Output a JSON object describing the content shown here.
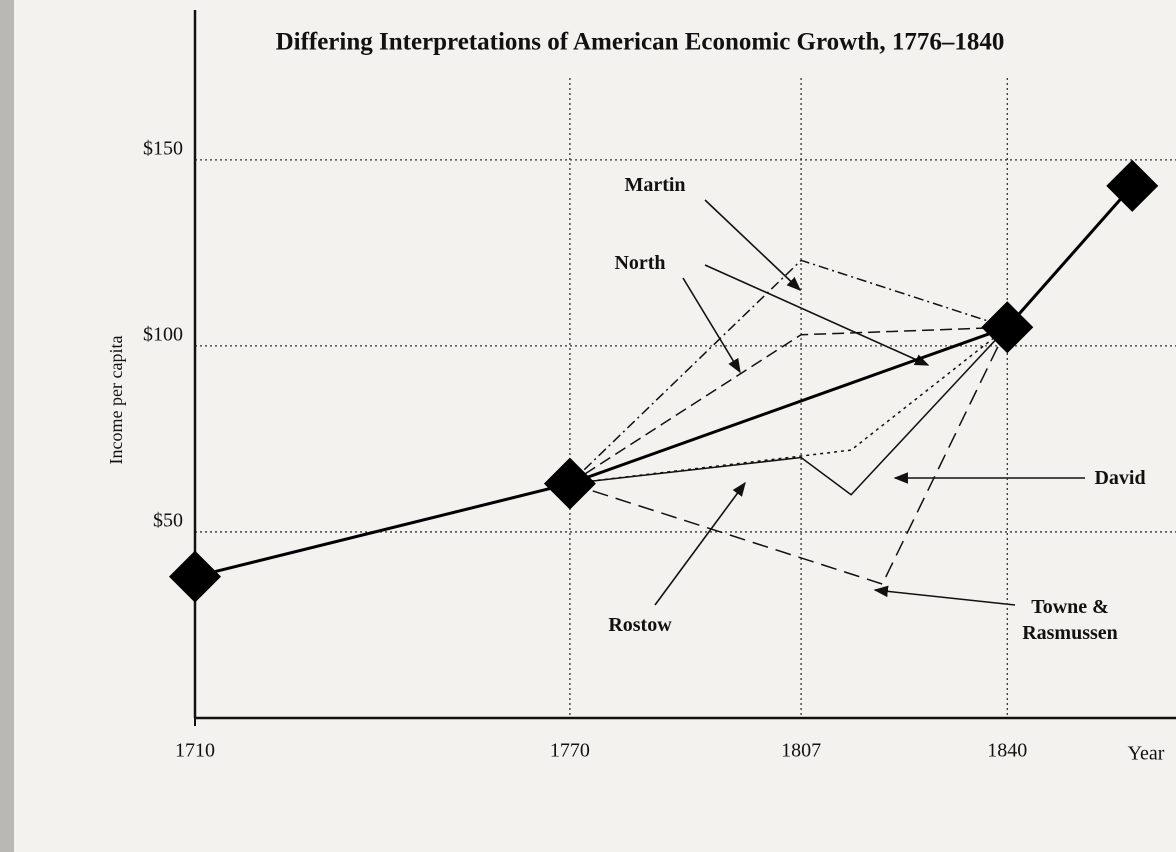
{
  "chart_data": {
    "type": "line",
    "title": "Differing Interpretations of American Economic Growth, 1776–1840",
    "y_label": "Income per capita",
    "x_label": "Year",
    "xlim": [
      1710,
      1867
    ],
    "xticks": [
      1710,
      1770,
      1807,
      1840
    ],
    "ylim": [
      0,
      172
    ],
    "yticks": [
      {
        "value": 50,
        "label": "$50"
      },
      {
        "value": 100,
        "label": "$100"
      },
      {
        "value": 150,
        "label": "$150"
      }
    ],
    "grid": true,
    "series": [
      {
        "x": [
          1710,
          1770,
          1840,
          1860
        ],
        "values": [
          38,
          63,
          105,
          143
        ],
        "color": "#000000",
        "width": 3,
        "dash": "none",
        "marker": "diamond"
      },
      {
        "name": "Martin",
        "x": [
          1770,
          1807,
          1840
        ],
        "values": [
          63,
          123,
          105
        ],
        "color": "#111111",
        "width": 1.5,
        "dash": "10 4 2 4"
      },
      {
        "name": "North",
        "x": [
          1770,
          1807,
          1840
        ],
        "values": [
          63,
          103,
          105
        ],
        "color": "#111111",
        "width": 1.5,
        "dash": "12 6"
      },
      {
        "name": "David",
        "x": [
          1770,
          1807,
          1815,
          1840
        ],
        "values": [
          63,
          70,
          60,
          105
        ],
        "color": "#111111",
        "width": 1.5,
        "dash": "none"
      },
      {
        "name": "Rostow",
        "x": [
          1770,
          1815,
          1840
        ],
        "values": [
          63,
          72,
          105
        ],
        "color": "#111111",
        "width": 1.5,
        "dash": "3 4"
      },
      {
        "name": "Towne & Rasmussen",
        "x": [
          1770,
          1820,
          1840
        ],
        "values": [
          63,
          36,
          105
        ],
        "color": "#111111",
        "width": 1.5,
        "dash": "16 8"
      }
    ]
  }
}
